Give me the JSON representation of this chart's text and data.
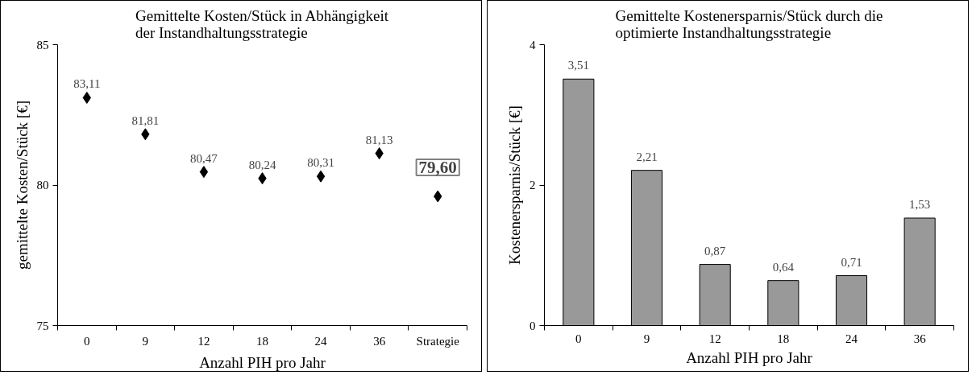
{
  "chart_data": [
    {
      "type": "scatter",
      "title": "Gemittelte Kosten/Stück in Abhängigkeit\nder Instandhaltungsstrategie",
      "xlabel": "Anzahl PIH pro Jahr",
      "ylabel": "gemittelte Kosten/Stück [€]",
      "categories": [
        "0",
        "9",
        "12",
        "18",
        "24",
        "36",
        "Strategie"
      ],
      "series": [
        {
          "color": "#000000",
          "values": [
            83.11,
            81.81,
            80.47,
            80.24,
            80.31,
            81.13,
            79.6
          ]
        }
      ],
      "value_labels": [
        "83,11",
        "81,81",
        "80,47",
        "80,24",
        "80,31",
        "81,13",
        "79,60"
      ],
      "marker": "diamond",
      "ylim": [
        75,
        85
      ],
      "yticks": [
        75,
        80,
        85
      ],
      "grid": false
    },
    {
      "type": "bar",
      "title": "Gemittelte Kostenersparnis/Stück durch die\noptimierte Instandhaltungsstrategie",
      "xlabel": "Anzahl PIH pro Jahr",
      "ylabel": "Kostenersparnis/Stück [€]",
      "categories": [
        "0",
        "9",
        "12",
        "18",
        "24",
        "36"
      ],
      "series": [
        {
          "color": "#999999",
          "values": [
            3.51,
            2.21,
            0.87,
            0.64,
            0.71,
            1.53
          ]
        }
      ],
      "value_labels": [
        "3,51",
        "2,21",
        "0,87",
        "0,64",
        "0,71",
        "1,53"
      ],
      "ylim": [
        0,
        4
      ],
      "yticks": [
        0,
        2,
        4
      ],
      "grid": false
    }
  ]
}
